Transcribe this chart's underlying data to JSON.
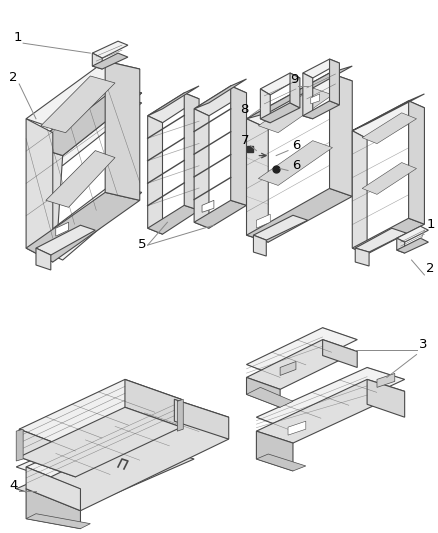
{
  "bg_color": "#ffffff",
  "line_color": "#4a4a4a",
  "label_color": "#000000",
  "fig_width": 4.38,
  "fig_height": 5.33,
  "dpi": 100,
  "lw": 0.8,
  "fill_light": "#f2f2f2",
  "fill_mid": "#e0e0e0",
  "fill_dark": "#c8c8c8",
  "fill_darker": "#b8b8b8"
}
